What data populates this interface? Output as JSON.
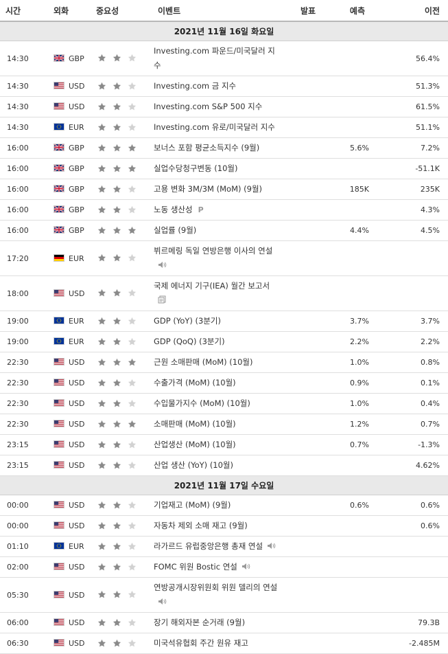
{
  "headers": {
    "time": "시간",
    "currency": "외화",
    "importance": "중요성",
    "event": "이벤트",
    "actual": "발표",
    "forecast": "예측",
    "previous": "이전"
  },
  "colors": {
    "star_filled": "#8a8a8a",
    "star_empty": "#d2d2d2",
    "date_row_bg": "#e9e9e9"
  },
  "days": [
    {
      "date": "2021년 11월 16일 화요일",
      "events": [
        {
          "time": "14:30",
          "flag": "uk-flag",
          "currency": "GBP",
          "stars": 2,
          "event": "Investing.com 파운드/미국달러 지수",
          "icon": "",
          "actual": "",
          "forecast": "",
          "previous": "56.4%"
        },
        {
          "time": "14:30",
          "flag": "us-flag",
          "currency": "USD",
          "stars": 2,
          "event": "Investing.com 금 지수",
          "icon": "",
          "actual": "",
          "forecast": "",
          "previous": "51.3%"
        },
        {
          "time": "14:30",
          "flag": "us-flag",
          "currency": "USD",
          "stars": 2,
          "event": "Investing.com S&P 500 지수",
          "icon": "",
          "actual": "",
          "forecast": "",
          "previous": "61.5%"
        },
        {
          "time": "14:30",
          "flag": "eu-flag",
          "currency": "EUR",
          "stars": 2,
          "event": "Investing.com 유로/미국달러 지수",
          "icon": "",
          "actual": "",
          "forecast": "",
          "previous": "51.1%"
        },
        {
          "time": "16:00",
          "flag": "uk-flag",
          "currency": "GBP",
          "stars": 3,
          "event": "보너스 포함 평균소득지수 (9월)",
          "icon": "",
          "actual": "",
          "forecast": "5.6%",
          "previous": "7.2%"
        },
        {
          "time": "16:00",
          "flag": "uk-flag",
          "currency": "GBP",
          "stars": 3,
          "event": "실업수당청구변동 (10월)",
          "icon": "",
          "actual": "",
          "forecast": "",
          "previous": "-51.1K"
        },
        {
          "time": "16:00",
          "flag": "uk-flag",
          "currency": "GBP",
          "stars": 2,
          "event": "고용 변화 3M/3M (MoM) (9월)",
          "icon": "",
          "actual": "",
          "forecast": "185K",
          "previous": "235K"
        },
        {
          "time": "16:00",
          "flag": "uk-flag",
          "currency": "GBP",
          "stars": 2,
          "event": "노동 생산성",
          "icon": "preliminary-icon",
          "icon_text": "P",
          "actual": "",
          "forecast": "",
          "previous": "4.3%"
        },
        {
          "time": "16:00",
          "flag": "uk-flag",
          "currency": "GBP",
          "stars": 3,
          "event": "실업률 (9월)",
          "icon": "",
          "actual": "",
          "forecast": "4.4%",
          "previous": "4.5%"
        },
        {
          "time": "17:20",
          "flag": "de-flag",
          "currency": "EUR",
          "stars": 2,
          "event": "뷔르메링 독일 연방은행 이사의 연설",
          "icon": "speaker-icon",
          "actual": "",
          "forecast": "",
          "previous": ""
        },
        {
          "time": "18:00",
          "flag": "us-flag",
          "currency": "USD",
          "stars": 2,
          "event": "국제 에너지 기구(IEA) 월간 보고서",
          "icon": "report-icon",
          "actual": "",
          "forecast": "",
          "previous": ""
        },
        {
          "time": "19:00",
          "flag": "eu-flag",
          "currency": "EUR",
          "stars": 2,
          "event": "GDP (YoY) (3분기)",
          "icon": "",
          "actual": "",
          "forecast": "3.7%",
          "previous": "3.7%"
        },
        {
          "time": "19:00",
          "flag": "eu-flag",
          "currency": "EUR",
          "stars": 2,
          "event": "GDP (QoQ) (3분기)",
          "icon": "",
          "actual": "",
          "forecast": "2.2%",
          "previous": "2.2%"
        },
        {
          "time": "22:30",
          "flag": "us-flag",
          "currency": "USD",
          "stars": 3,
          "event": "근원 소매판매 (MoM) (10월)",
          "icon": "",
          "actual": "",
          "forecast": "1.0%",
          "previous": "0.8%"
        },
        {
          "time": "22:30",
          "flag": "us-flag",
          "currency": "USD",
          "stars": 2,
          "event": "수출가격 (MoM) (10월)",
          "icon": "",
          "actual": "",
          "forecast": "0.9%",
          "previous": "0.1%"
        },
        {
          "time": "22:30",
          "flag": "us-flag",
          "currency": "USD",
          "stars": 2,
          "event": "수입물가지수 (MoM) (10월)",
          "icon": "",
          "actual": "",
          "forecast": "1.0%",
          "previous": "0.4%"
        },
        {
          "time": "22:30",
          "flag": "us-flag",
          "currency": "USD",
          "stars": 3,
          "event": "소매판매 (MoM) (10월)",
          "icon": "",
          "actual": "",
          "forecast": "1.2%",
          "previous": "0.7%"
        },
        {
          "time": "23:15",
          "flag": "us-flag",
          "currency": "USD",
          "stars": 2,
          "event": "산업생산 (MoM) (10월)",
          "icon": "",
          "actual": "",
          "forecast": "0.7%",
          "previous": "-1.3%"
        },
        {
          "time": "23:15",
          "flag": "us-flag",
          "currency": "USD",
          "stars": 2,
          "event": "산업 생산 (YoY) (10월)",
          "icon": "",
          "actual": "",
          "forecast": "",
          "previous": "4.62%"
        }
      ]
    },
    {
      "date": "2021년 11월 17일 수요일",
      "events": [
        {
          "time": "00:00",
          "flag": "us-flag",
          "currency": "USD",
          "stars": 2,
          "event": "기업재고 (MoM) (9월)",
          "icon": "",
          "actual": "",
          "forecast": "0.6%",
          "previous": "0.6%"
        },
        {
          "time": "00:00",
          "flag": "us-flag",
          "currency": "USD",
          "stars": 2,
          "event": "자동차 제외 소매 재고 (9월)",
          "icon": "",
          "actual": "",
          "forecast": "",
          "previous": "0.6%"
        },
        {
          "time": "01:10",
          "flag": "eu-flag",
          "currency": "EUR",
          "stars": 2,
          "event": "라가르드 유럽중앙은행 총재 연설",
          "icon": "speaker-icon",
          "actual": "",
          "forecast": "",
          "previous": ""
        },
        {
          "time": "02:00",
          "flag": "us-flag",
          "currency": "USD",
          "stars": 2,
          "event": "FOMC 위원 Bostic 연설",
          "icon": "speaker-icon",
          "actual": "",
          "forecast": "",
          "previous": ""
        },
        {
          "time": "05:30",
          "flag": "us-flag",
          "currency": "USD",
          "stars": 2,
          "event": "연방공개시장위원회 위원 델리의 연설",
          "icon": "speaker-icon",
          "actual": "",
          "forecast": "",
          "previous": ""
        },
        {
          "time": "06:00",
          "flag": "us-flag",
          "currency": "USD",
          "stars": 2,
          "event": "장기 해외자본 순거래 (9월)",
          "icon": "",
          "actual": "",
          "forecast": "",
          "previous": "79.3B"
        },
        {
          "time": "06:30",
          "flag": "us-flag",
          "currency": "USD",
          "stars": 2,
          "event": "미국석유협회 주간 원유 재고",
          "icon": "",
          "actual": "",
          "forecast": "",
          "previous": "-2.485M"
        }
      ]
    }
  ]
}
